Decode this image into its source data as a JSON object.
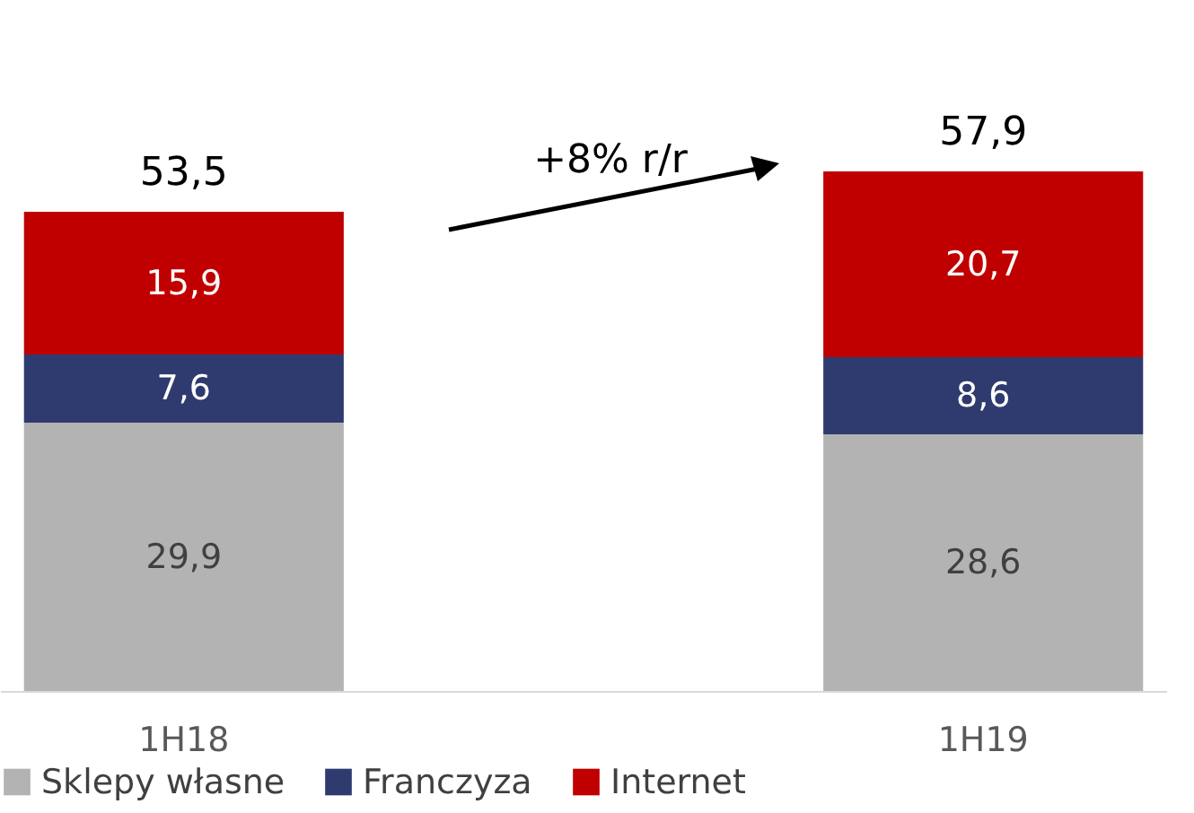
{
  "chart_data": {
    "type": "bar",
    "stacked": true,
    "categories": [
      "1H18",
      "1H19"
    ],
    "series": [
      {
        "name": "Sklepy własne",
        "color": "#b3b3b3",
        "values": [
          29.9,
          28.6
        ],
        "value_labels": [
          "29,9",
          "28,6"
        ]
      },
      {
        "name": "Franczyza",
        "color": "#2f3a6e",
        "values": [
          7.6,
          8.6
        ],
        "value_labels": [
          "7,6",
          "8,6"
        ]
      },
      {
        "name": "Internet",
        "color": "#c00000",
        "values": [
          15.9,
          20.7
        ],
        "value_labels": [
          "15,9",
          "20,7"
        ]
      }
    ],
    "totals": [
      "53,5",
      "57,9"
    ],
    "annotations": [
      "+8% r/r"
    ],
    "legend": "bottom"
  }
}
